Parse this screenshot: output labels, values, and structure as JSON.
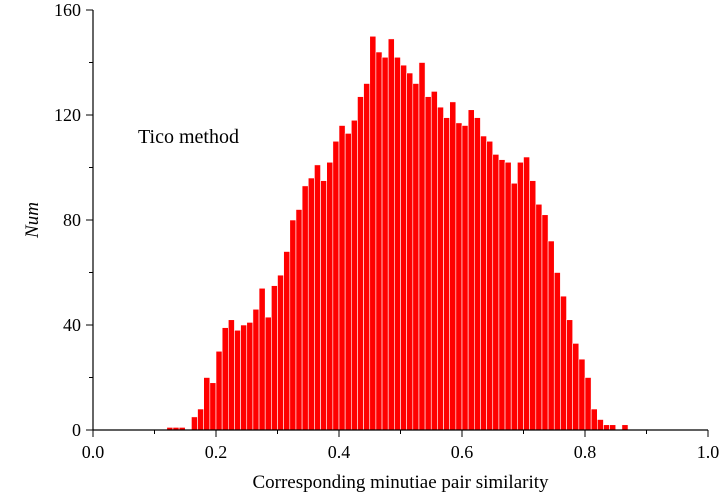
{
  "chart_data": {
    "type": "bar",
    "xlabel": "Corresponding minutiae pair similarity",
    "ylabel": "Num",
    "annotation": "Tico method",
    "xlim": [
      0.0,
      1.0
    ],
    "ylim": [
      0,
      160
    ],
    "bin_width": 0.01,
    "x_ticks": [
      "0.0",
      "0.2",
      "0.4",
      "0.6",
      "0.8",
      "1.0"
    ],
    "y_ticks": [
      "0",
      "40",
      "80",
      "120",
      "160"
    ],
    "bar_color": "#ff0000",
    "bar_edge_color": "#ffffff",
    "x": [
      0.12,
      0.13,
      0.14,
      0.15,
      0.16,
      0.17,
      0.18,
      0.19,
      0.2,
      0.21,
      0.22,
      0.23,
      0.24,
      0.25,
      0.26,
      0.27,
      0.28,
      0.29,
      0.3,
      0.31,
      0.32,
      0.33,
      0.34,
      0.35,
      0.36,
      0.37,
      0.38,
      0.39,
      0.4,
      0.41,
      0.42,
      0.43,
      0.44,
      0.45,
      0.46,
      0.47,
      0.48,
      0.49,
      0.5,
      0.51,
      0.52,
      0.53,
      0.54,
      0.55,
      0.56,
      0.57,
      0.58,
      0.59,
      0.6,
      0.61,
      0.62,
      0.63,
      0.64,
      0.65,
      0.66,
      0.67,
      0.68,
      0.69,
      0.7,
      0.71,
      0.72,
      0.73,
      0.74,
      0.75,
      0.76,
      0.77,
      0.78,
      0.79,
      0.8,
      0.81,
      0.82,
      0.83,
      0.84,
      0.85,
      0.86
    ],
    "values": [
      1,
      1,
      1,
      0,
      5,
      8,
      20,
      18,
      30,
      39,
      42,
      38,
      40,
      41,
      46,
      54,
      43,
      55,
      59,
      68,
      80,
      84,
      93,
      96,
      101,
      95,
      102,
      110,
      116,
      113,
      118,
      127,
      132,
      150,
      144,
      142,
      149,
      142,
      139,
      136,
      132,
      140,
      127,
      129,
      123,
      119,
      125,
      117,
      116,
      122,
      119,
      112,
      110,
      105,
      103,
      102,
      94,
      102,
      104,
      95,
      86,
      82,
      72,
      60,
      51,
      42,
      33,
      27,
      20,
      8,
      4,
      2,
      2,
      0,
      2
    ]
  }
}
